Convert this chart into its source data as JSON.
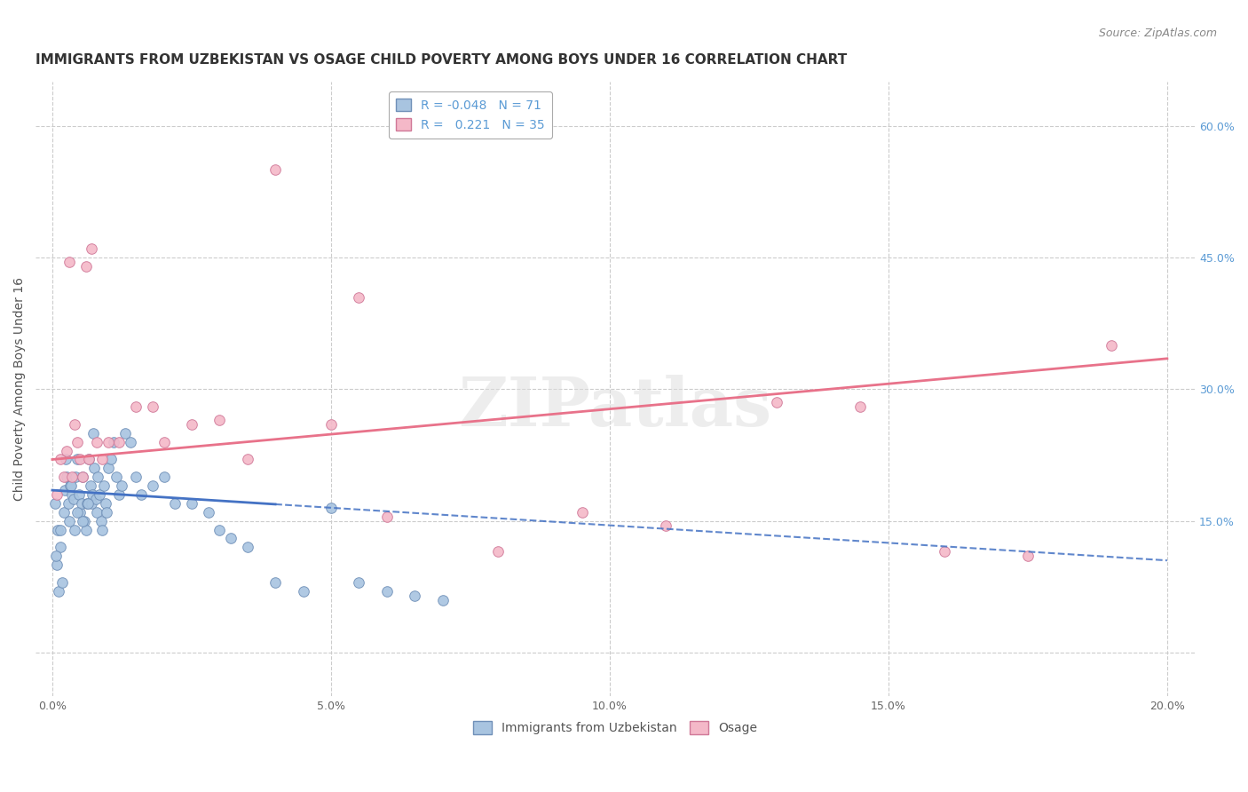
{
  "title": "IMMIGRANTS FROM UZBEKISTAN VS OSAGE CHILD POVERTY AMONG BOYS UNDER 16 CORRELATION CHART",
  "source": "Source: ZipAtlas.com",
  "ylabel": "Child Poverty Among Boys Under 16",
  "xlabel_ticks": [
    "0.0%",
    "5.0%",
    "10.0%",
    "15.0%",
    "20.0%"
  ],
  "xlabel_vals": [
    0.0,
    5.0,
    10.0,
    15.0,
    20.0
  ],
  "ylabel_right_ticks": [
    "60.0%",
    "45.0%",
    "30.0%",
    "15.0%"
  ],
  "ylabel_right_vals": [
    60.0,
    45.0,
    30.0,
    15.0
  ],
  "xlim": [
    -0.3,
    20.5
  ],
  "ylim": [
    -5.0,
    65.0
  ],
  "series1_color": "#a8c4e0",
  "series1_edge": "#7090b8",
  "series2_color": "#f4b8c8",
  "series2_edge": "#d07898",
  "trend1_color": "#4472c4",
  "trend2_color": "#e8728a",
  "background_color": "#ffffff",
  "grid_color": "#cccccc",
  "title_fontsize": 11,
  "source_fontsize": 9,
  "axis_label_fontsize": 10,
  "tick_fontsize": 9,
  "legend_fontsize": 10,
  "marker_size": 70,
  "blue_x": [
    0.05,
    0.08,
    0.1,
    0.12,
    0.15,
    0.18,
    0.2,
    0.22,
    0.25,
    0.28,
    0.3,
    0.32,
    0.35,
    0.38,
    0.4,
    0.42,
    0.45,
    0.48,
    0.5,
    0.52,
    0.55,
    0.58,
    0.6,
    0.62,
    0.65,
    0.68,
    0.7,
    0.72,
    0.75,
    0.78,
    0.8,
    0.82,
    0.85,
    0.88,
    0.9,
    0.92,
    0.95,
    0.98,
    1.0,
    1.05,
    1.1,
    1.15,
    1.2,
    1.25,
    1.3,
    1.4,
    1.5,
    1.6,
    1.8,
    2.0,
    2.2,
    2.5,
    2.8,
    3.0,
    3.2,
    3.5,
    4.0,
    4.5,
    5.0,
    5.5,
    6.0,
    6.5,
    7.0,
    0.06,
    0.14,
    0.24,
    0.34,
    0.44,
    0.54,
    0.64,
    0.74
  ],
  "blue_y": [
    17.0,
    10.0,
    14.0,
    7.0,
    12.0,
    8.0,
    16.0,
    18.5,
    20.0,
    17.0,
    15.0,
    19.0,
    18.0,
    17.5,
    14.0,
    20.0,
    22.0,
    18.0,
    16.0,
    17.0,
    20.0,
    15.0,
    14.0,
    17.0,
    22.0,
    19.0,
    17.0,
    18.0,
    21.0,
    17.5,
    16.0,
    20.0,
    18.0,
    15.0,
    14.0,
    19.0,
    17.0,
    16.0,
    21.0,
    22.0,
    24.0,
    20.0,
    18.0,
    19.0,
    25.0,
    24.0,
    20.0,
    18.0,
    19.0,
    20.0,
    17.0,
    17.0,
    16.0,
    14.0,
    13.0,
    12.0,
    8.0,
    7.0,
    16.5,
    8.0,
    7.0,
    6.5,
    6.0,
    11.0,
    14.0,
    22.0,
    19.0,
    16.0,
    15.0,
    17.0,
    25.0
  ],
  "pink_x": [
    0.08,
    0.15,
    0.2,
    0.25,
    0.3,
    0.35,
    0.4,
    0.5,
    0.6,
    0.7,
    0.8,
    0.9,
    1.0,
    1.2,
    1.5,
    1.8,
    2.0,
    2.5,
    3.0,
    3.5,
    4.0,
    5.0,
    5.5,
    6.0,
    8.0,
    9.5,
    11.0,
    13.0,
    14.5,
    16.0,
    17.5,
    19.0,
    0.45,
    0.55,
    0.65
  ],
  "pink_y": [
    18.0,
    22.0,
    20.0,
    23.0,
    44.5,
    20.0,
    26.0,
    22.0,
    44.0,
    46.0,
    24.0,
    22.0,
    24.0,
    24.0,
    28.0,
    28.0,
    24.0,
    26.0,
    26.5,
    22.0,
    55.0,
    26.0,
    40.5,
    15.5,
    11.5,
    16.0,
    14.5,
    28.5,
    28.0,
    11.5,
    11.0,
    35.0,
    24.0,
    20.0,
    22.0
  ],
  "blue_trend_x0": 0.0,
  "blue_trend_y0": 18.5,
  "blue_trend_x1": 20.0,
  "blue_trend_y1": 10.5,
  "blue_solid_xmax": 4.0,
  "pink_trend_x0": 0.0,
  "pink_trend_y0": 22.0,
  "pink_trend_x1": 20.0,
  "pink_trend_y1": 33.5
}
